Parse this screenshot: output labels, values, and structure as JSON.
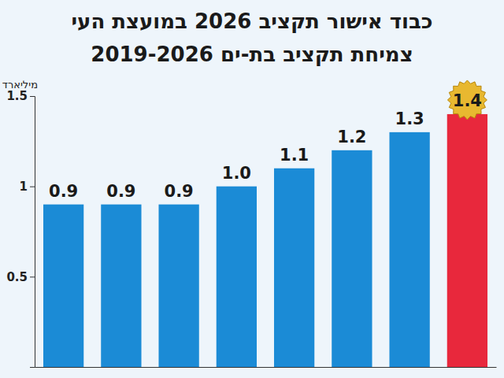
{
  "chart_data": {
    "type": "bar",
    "title": "כבוד אישור תקציב 2026 במועצת העי",
    "subtitle": "צמיחת תקציב בת-ים 2019-2026",
    "y_label": "מיליארד",
    "categories": [
      null,
      null,
      null,
      null,
      null,
      null,
      null,
      null
    ],
    "values": [
      0.9,
      0.9,
      0.9,
      1.0,
      1.1,
      1.2,
      1.3,
      1.4
    ],
    "value_labels": [
      "0.9",
      "0.9",
      "0.9",
      "1.0",
      "1.1",
      "1.2",
      "1.3",
      "1.4"
    ],
    "colors": [
      "#1b8bd6",
      "#1b8bd6",
      "#1b8bd6",
      "#1b8bd6",
      "#1b8bd6",
      "#1b8bd6",
      "#1b8bd6",
      "#e8283c"
    ],
    "ylim": [
      0,
      1.5
    ],
    "yticks": [
      0.5,
      1,
      1.5
    ],
    "grid": false,
    "data_labels": true
  }
}
